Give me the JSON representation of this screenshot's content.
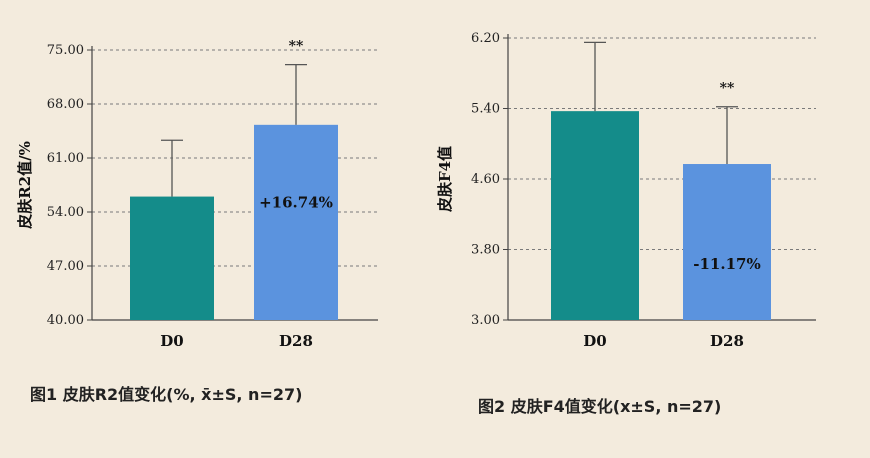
{
  "chart_data": [
    {
      "type": "bar",
      "categories": [
        "D0",
        "D28"
      ],
      "values": [
        56.0,
        65.3
      ],
      "error": [
        7.3,
        7.8
      ],
      "colors": [
        "#148c8a",
        "#5b93de"
      ],
      "ylabel": "皮肤R2值/%",
      "ylim": [
        40,
        75
      ],
      "yticks": [
        "40.00",
        "47.00",
        "54.00",
        "61.00",
        "68.00",
        "75.00"
      ],
      "grid": "dashed-horizontal",
      "annotations": [
        {
          "category": "D28",
          "text": "+16.74%",
          "position": "inside-bar"
        },
        {
          "category": "D28",
          "text": "**",
          "position": "above-error-bar"
        }
      ],
      "caption": "图1 皮肤R2值变化(%, x̄±S, n=27)"
    },
    {
      "type": "bar",
      "categories": [
        "D0",
        "D28"
      ],
      "values": [
        5.37,
        4.77
      ],
      "error": [
        0.78,
        0.65
      ],
      "colors": [
        "#148c8a",
        "#5b93de"
      ],
      "ylabel": "皮肤F4值",
      "ylim": [
        3.0,
        6.2
      ],
      "yticks": [
        "3.00",
        "3.80",
        "4.60",
        "5.40",
        "6.20"
      ],
      "grid": "dashed-horizontal",
      "annotations": [
        {
          "category": "D28",
          "text": "-11.17%",
          "position": "inside-bar"
        },
        {
          "category": "D28",
          "text": "**",
          "position": "above-error-bar"
        }
      ],
      "caption": "图2 皮肤F4值变化(x±S, n=27)"
    }
  ]
}
